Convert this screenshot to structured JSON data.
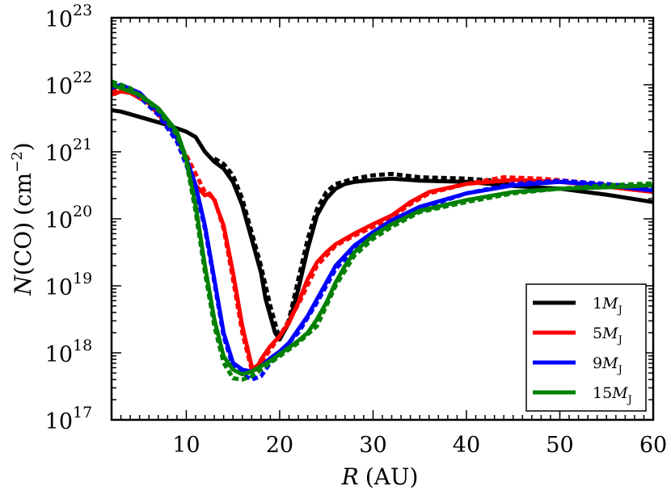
{
  "chart_data": {
    "type": "line",
    "xlabel": {
      "var": "R",
      "unit": "(AU)"
    },
    "ylabel": {
      "var": "N",
      "main": "(CO)",
      "unit_base": "(cm",
      "unit_exp": "−2",
      "unit_close": ")"
    },
    "xlim": [
      2,
      60
    ],
    "ylim_log10": [
      17,
      23
    ],
    "y_scale": "log",
    "x_ticks": [
      {
        "value": 10,
        "label": "10"
      },
      {
        "value": 20,
        "label": "20"
      },
      {
        "value": 30,
        "label": "30"
      },
      {
        "value": 40,
        "label": "40"
      },
      {
        "value": 50,
        "label": "50"
      },
      {
        "value": 60,
        "label": "60"
      }
    ],
    "y_ticks": [
      {
        "exp": 17,
        "base": "10",
        "sup": "17"
      },
      {
        "exp": 18,
        "base": "10",
        "sup": "18"
      },
      {
        "exp": 19,
        "base": "10",
        "sup": "19"
      },
      {
        "exp": 20,
        "base": "10",
        "sup": "20"
      },
      {
        "exp": 21,
        "base": "10",
        "sup": "21"
      },
      {
        "exp": 22,
        "base": "10",
        "sup": "22"
      },
      {
        "exp": 23,
        "base": "10",
        "sup": "23"
      }
    ],
    "legend_position": "lower-right",
    "series": [
      {
        "name": "1M_J",
        "label_num": "1",
        "label_var": "M",
        "label_sub": "J",
        "color": "#000000",
        "solid": [
          [
            2,
            21.62
          ],
          [
            3,
            21.6
          ],
          [
            5,
            21.52
          ],
          [
            8,
            21.4
          ],
          [
            10,
            21.3
          ],
          [
            11,
            21.22
          ],
          [
            12,
            21.0
          ],
          [
            13,
            20.85
          ],
          [
            14,
            20.75
          ],
          [
            15,
            20.55
          ],
          [
            16,
            20.2
          ],
          [
            17,
            19.7
          ],
          [
            18,
            19.2
          ],
          [
            18.5,
            18.8
          ],
          [
            19,
            18.55
          ],
          [
            19.5,
            18.3
          ],
          [
            20,
            18.2
          ],
          [
            21,
            18.45
          ],
          [
            22,
            18.95
          ],
          [
            23,
            19.55
          ],
          [
            24,
            20.05
          ],
          [
            25,
            20.3
          ],
          [
            26,
            20.45
          ],
          [
            27,
            20.52
          ],
          [
            28,
            20.55
          ],
          [
            30,
            20.58
          ],
          [
            32,
            20.6
          ],
          [
            35,
            20.57
          ],
          [
            40,
            20.55
          ],
          [
            45,
            20.49
          ],
          [
            50,
            20.45
          ],
          [
            55,
            20.36
          ],
          [
            60,
            20.25
          ]
        ],
        "dashed": [
          [
            13,
            20.9
          ],
          [
            14,
            20.82
          ],
          [
            15,
            20.65
          ],
          [
            16,
            20.3
          ],
          [
            17,
            19.8
          ],
          [
            18,
            19.3
          ],
          [
            19,
            18.7
          ],
          [
            20,
            18.2
          ],
          [
            21,
            18.5
          ],
          [
            22,
            19.1
          ],
          [
            23,
            19.7
          ],
          [
            24,
            20.15
          ],
          [
            25,
            20.4
          ],
          [
            26,
            20.52
          ],
          [
            28,
            20.6
          ],
          [
            30,
            20.65
          ],
          [
            32,
            20.67
          ],
          [
            35,
            20.62
          ],
          [
            40,
            20.6
          ],
          [
            45,
            20.55
          ]
        ]
      },
      {
        "name": "5M_J",
        "label_num": "5",
        "label_var": "M",
        "label_sub": "J",
        "color": "#ff0000",
        "solid": [
          [
            2,
            21.85
          ],
          [
            3,
            21.9
          ],
          [
            4,
            21.88
          ],
          [
            6,
            21.72
          ],
          [
            8,
            21.4
          ],
          [
            9,
            21.2
          ],
          [
            10,
            20.9
          ],
          [
            11,
            20.5
          ],
          [
            12,
            20.35
          ],
          [
            12.5,
            20.38
          ],
          [
            13,
            20.28
          ],
          [
            14,
            19.9
          ],
          [
            15,
            19.2
          ],
          [
            16,
            18.4
          ],
          [
            17,
            17.8
          ],
          [
            17.5,
            17.75
          ],
          [
            18,
            17.9
          ],
          [
            19,
            18.1
          ],
          [
            20,
            18.25
          ],
          [
            21,
            18.45
          ],
          [
            22,
            18.75
          ],
          [
            23,
            19.1
          ],
          [
            24,
            19.35
          ],
          [
            25,
            19.5
          ],
          [
            26,
            19.62
          ],
          [
            28,
            19.78
          ],
          [
            30,
            19.92
          ],
          [
            32,
            20.05
          ],
          [
            34,
            20.25
          ],
          [
            36,
            20.4
          ],
          [
            40,
            20.52
          ],
          [
            45,
            20.58
          ],
          [
            50,
            20.55
          ],
          [
            55,
            20.48
          ],
          [
            60,
            20.4
          ]
        ],
        "dashed": [
          [
            2,
            21.9
          ],
          [
            3,
            21.95
          ],
          [
            5,
            21.85
          ],
          [
            8,
            21.4
          ],
          [
            10,
            20.95
          ],
          [
            12,
            20.4
          ],
          [
            13,
            20.3
          ],
          [
            14,
            19.85
          ],
          [
            15,
            19.1
          ],
          [
            16,
            18.3
          ],
          [
            17,
            17.75
          ],
          [
            18,
            17.85
          ],
          [
            20,
            18.25
          ],
          [
            22,
            18.72
          ],
          [
            24,
            19.3
          ],
          [
            26,
            19.6
          ],
          [
            28,
            19.75
          ],
          [
            30,
            19.88
          ],
          [
            32,
            20.02
          ],
          [
            34,
            20.22
          ],
          [
            36,
            20.38
          ],
          [
            40,
            20.52
          ],
          [
            44,
            20.62
          ],
          [
            48,
            20.6
          ],
          [
            52,
            20.55
          ],
          [
            56,
            20.5
          ],
          [
            60,
            20.45
          ]
        ]
      },
      {
        "name": "9M_J",
        "label_num": "9",
        "label_var": "M",
        "label_sub": "J",
        "color": "#0000ff",
        "solid": [
          [
            2,
            21.95
          ],
          [
            3,
            22.0
          ],
          [
            5,
            21.88
          ],
          [
            7,
            21.6
          ],
          [
            9,
            21.2
          ],
          [
            10,
            20.9
          ],
          [
            11,
            20.5
          ],
          [
            12,
            19.9
          ],
          [
            13,
            19.1
          ],
          [
            14,
            18.3
          ],
          [
            15,
            17.85
          ],
          [
            16,
            17.75
          ],
          [
            17,
            17.72
          ],
          [
            18,
            17.8
          ],
          [
            19,
            17.92
          ],
          [
            20,
            18.02
          ],
          [
            21,
            18.15
          ],
          [
            22,
            18.35
          ],
          [
            23,
            18.55
          ],
          [
            24,
            18.8
          ],
          [
            25,
            19.05
          ],
          [
            26,
            19.3
          ],
          [
            28,
            19.6
          ],
          [
            30,
            19.8
          ],
          [
            32,
            19.98
          ],
          [
            35,
            20.18
          ],
          [
            40,
            20.38
          ],
          [
            45,
            20.5
          ],
          [
            50,
            20.55
          ],
          [
            55,
            20.5
          ],
          [
            60,
            20.42
          ]
        ],
        "dashed": [
          [
            2,
            22.0
          ],
          [
            4,
            21.95
          ],
          [
            7,
            21.55
          ],
          [
            9,
            21.15
          ],
          [
            11,
            20.45
          ],
          [
            12,
            19.85
          ],
          [
            13,
            19.05
          ],
          [
            14,
            18.25
          ],
          [
            15,
            17.8
          ],
          [
            16,
            17.68
          ],
          [
            17,
            17.6
          ],
          [
            18,
            17.65
          ],
          [
            19,
            17.85
          ],
          [
            20,
            18.0
          ],
          [
            22,
            18.3
          ],
          [
            24,
            18.75
          ],
          [
            26,
            19.25
          ],
          [
            28,
            19.55
          ],
          [
            30,
            19.78
          ],
          [
            32,
            19.95
          ],
          [
            35,
            20.15
          ],
          [
            40,
            20.38
          ],
          [
            45,
            20.52
          ],
          [
            50,
            20.57
          ],
          [
            55,
            20.52
          ],
          [
            60,
            20.45
          ]
        ]
      },
      {
        "name": "15M_J",
        "label_num": "15",
        "label_var": "M",
        "label_sub": "J",
        "color": "#008000",
        "solid": [
          [
            2,
            22.0
          ],
          [
            3,
            21.95
          ],
          [
            5,
            21.85
          ],
          [
            7,
            21.65
          ],
          [
            9,
            21.3
          ],
          [
            10,
            20.9
          ],
          [
            11,
            20.2
          ],
          [
            12,
            19.3
          ],
          [
            13,
            18.5
          ],
          [
            14,
            17.95
          ],
          [
            15,
            17.75
          ],
          [
            16,
            17.68
          ],
          [
            17,
            17.72
          ],
          [
            18,
            17.8
          ],
          [
            19,
            17.88
          ],
          [
            20,
            17.98
          ],
          [
            21,
            18.08
          ],
          [
            22,
            18.18
          ],
          [
            23,
            18.3
          ],
          [
            24,
            18.5
          ],
          [
            25,
            18.75
          ],
          [
            26,
            19.05
          ],
          [
            27,
            19.3
          ],
          [
            28,
            19.5
          ],
          [
            30,
            19.75
          ],
          [
            32,
            19.92
          ],
          [
            35,
            20.12
          ],
          [
            40,
            20.28
          ],
          [
            45,
            20.4
          ],
          [
            50,
            20.45
          ],
          [
            55,
            20.47
          ],
          [
            60,
            20.5
          ]
        ],
        "dashed": [
          [
            2,
            22.05
          ],
          [
            4,
            21.95
          ],
          [
            7,
            21.62
          ],
          [
            9,
            21.25
          ],
          [
            10,
            20.85
          ],
          [
            11,
            20.1
          ],
          [
            12,
            19.2
          ],
          [
            13,
            18.4
          ],
          [
            14,
            17.85
          ],
          [
            15,
            17.62
          ],
          [
            16,
            17.6
          ],
          [
            17,
            17.65
          ],
          [
            18,
            17.75
          ],
          [
            20,
            17.95
          ],
          [
            22,
            18.15
          ],
          [
            24,
            18.4
          ],
          [
            26,
            19.0
          ],
          [
            28,
            19.45
          ],
          [
            30,
            19.7
          ],
          [
            32,
            19.88
          ],
          [
            35,
            20.1
          ],
          [
            40,
            20.25
          ],
          [
            45,
            20.38
          ],
          [
            50,
            20.45
          ],
          [
            55,
            20.5
          ],
          [
            60,
            20.53
          ]
        ]
      }
    ]
  }
}
